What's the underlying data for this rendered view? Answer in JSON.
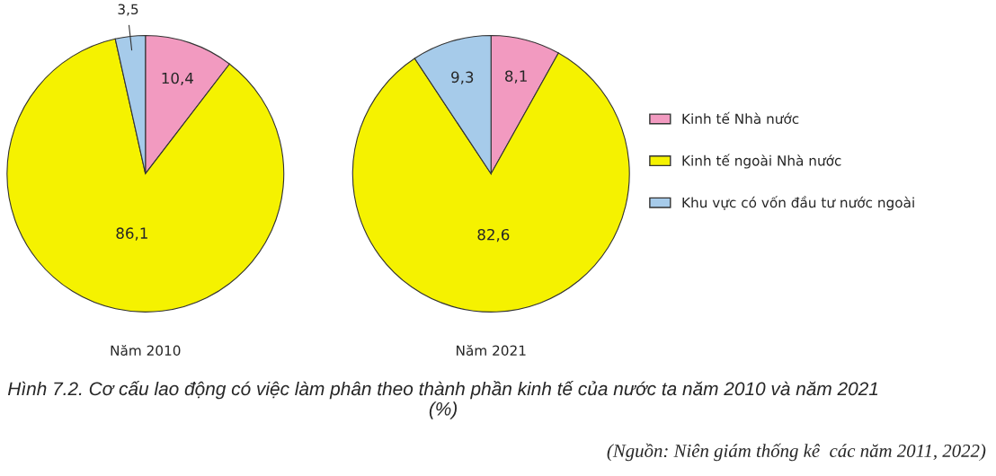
{
  "chart_data": [
    {
      "type": "pie",
      "title": "Năm 2010",
      "categories": [
        "Kinh tế Nhà nước",
        "Kinh tế ngoài Nhà nước",
        "Khu vực có vốn đầu tư nước ngoài"
      ],
      "values": [
        10.4,
        86.1,
        3.5
      ],
      "value_labels": [
        "10,4",
        "86,1",
        "3,5"
      ],
      "colors": [
        "#f29ac0",
        "#f5f200",
        "#a6cbea"
      ],
      "legend": "right",
      "annotations": [
        "Hình 7.2. Cơ cấu lao động có việc làm phân theo thành phần kinh tế của nước ta năm 2010 và năm 2021 (%)",
        "(Nguồn: Niên giám thống kê  các năm 2011, 2022)"
      ]
    },
    {
      "type": "pie",
      "title": "Năm 2021",
      "categories": [
        null,
        null,
        null
      ],
      "values": [
        8.1,
        82.6,
        9.3
      ],
      "value_labels": [
        "8,1",
        "82,6",
        "9,3"
      ],
      "colors": [
        "#f29ac0",
        "#f5f200",
        "#a6cbea"
      ]
    }
  ]
}
